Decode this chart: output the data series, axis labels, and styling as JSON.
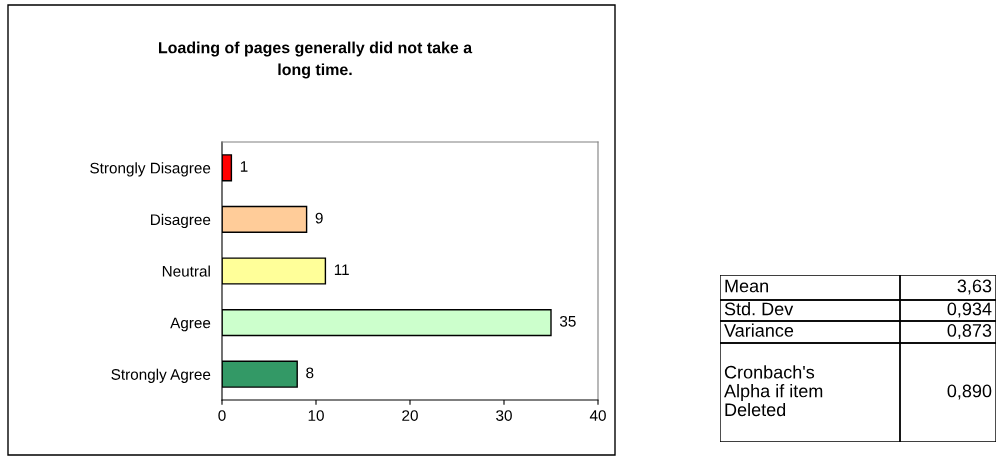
{
  "chart_data": [
    {
      "type": "bar",
      "orientation": "horizontal",
      "title": "Loading of pages generally did not take a\nlong time.",
      "categories": [
        "Strongly Disagree",
        "Disagree",
        "Neutral",
        "Agree",
        "Strongly Agree"
      ],
      "values": [
        1,
        9,
        11,
        35,
        8
      ],
      "colors": [
        "#ff0000",
        "#ffcc99",
        "#ffff99",
        "#ccffcc",
        "#339966"
      ],
      "xlim": [
        0,
        40
      ],
      "xticks": [
        0,
        10,
        20,
        30,
        40
      ],
      "data_labels": true,
      "grid": false,
      "legend": false
    },
    {
      "type": "other",
      "annotations": [
        "Mean",
        "3,63",
        "Std. Dev",
        "0,934",
        "Variance",
        "0,873",
        "Cronbach's\nAlpha if item\nDeleted",
        "0,890"
      ]
    }
  ]
}
